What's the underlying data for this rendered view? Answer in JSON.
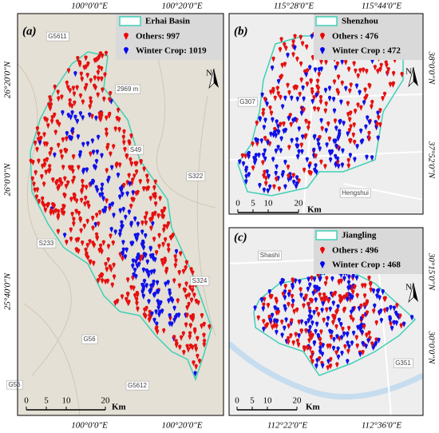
{
  "panels": [
    {
      "label": "(a)",
      "legend": {
        "title": "Erhai Basin",
        "items": [
          "Others: 997",
          "Winter Crop: 1019"
        ]
      },
      "top_coords": [
        "100°0'0\"E",
        "100°20'0\"E"
      ],
      "bottom_coords": [
        "100°0'0\"E",
        "100°20'0\"E"
      ],
      "side_coords": [
        "26°20'0\"N",
        "26°0'0\"N",
        "25°40'0\"N"
      ],
      "places": [
        "G5611",
        "2969 m",
        "S49",
        "S322",
        "S233",
        "S324",
        "G56",
        "G5612",
        "G56"
      ],
      "scale": {
        "ticks": [
          "0",
          "5",
          "10",
          "20"
        ],
        "unit": "Km"
      },
      "north": "N"
    },
    {
      "label": "(b)",
      "legend": {
        "title": "Shenzhou",
        "items": [
          "Others : 476",
          "Winter Crop : 472"
        ]
      },
      "top_coords": [
        "115°28'0\"E",
        "115°44'0\"E"
      ],
      "side_coords": [
        "38°0'0\"N",
        "37°52'0\"N"
      ],
      "places": [
        "G307",
        "Hengshui"
      ],
      "scale": {
        "ticks": [
          "0",
          "5",
          "10",
          "20"
        ],
        "unit": "Km"
      },
      "north": "N"
    },
    {
      "label": "(c)",
      "legend": {
        "title": "Jiangling",
        "items": [
          "Others : 496",
          "Winter Crop : 468"
        ]
      },
      "bottom_coords": [
        "112°22'0\"E",
        "112°36'0\"E"
      ],
      "side_coords": [
        "30°15'0\"N",
        "30°0'0\"N"
      ],
      "places": [
        "Shashi",
        "G351"
      ],
      "scale": {
        "ticks": [
          "0",
          "5",
          "10",
          "20"
        ],
        "unit": "Km"
      },
      "north": "N"
    }
  ]
}
